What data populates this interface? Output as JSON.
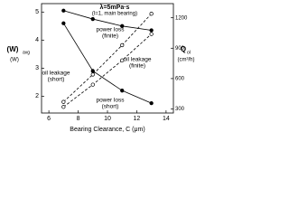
{
  "chart_data": {
    "type": "line",
    "title": "λ=5mPa·s",
    "subtitle": "(l=1, main bearing)",
    "x_label": "Bearing Clearance, C (μm)",
    "y_label": "(W)",
    "y_label_sub": "avg",
    "y_unit": "(W)",
    "y2_label": "Q",
    "y2_label_sub": "ol",
    "y2_unit": "(cm³/h)",
    "x": [
      7,
      9,
      11,
      13
    ],
    "xlim": [
      5.5,
      14.5
    ],
    "xticks": [
      6,
      8,
      10,
      12,
      14
    ],
    "ylim": [
      1.4,
      5.3
    ],
    "yticks": [
      2,
      3,
      4,
      5
    ],
    "y2lim": [
      260,
      1340
    ],
    "y2ticks": [
      300,
      600,
      900,
      1200
    ],
    "series": [
      {
        "label_lines": [
          "power loss",
          "(finite)"
        ],
        "color": "#000000",
        "dashed": false,
        "filled": true,
        "values": [
          5.05,
          4.75,
          4.5,
          4.35
        ]
      },
      {
        "label_lines": [
          "oil leakage",
          "(finite)"
        ],
        "color": "#000000",
        "dashed": true,
        "filled": false,
        "axis": "y2",
        "values": [
          370,
          640,
          930,
          1240
        ]
      },
      {
        "label_lines": [
          "oil leakage",
          "(short)"
        ],
        "color": "#000000",
        "dashed": true,
        "filled": false,
        "axis": "y2",
        "values": [
          320,
          540,
          780,
          1040
        ]
      },
      {
        "label_lines": [
          "power loss",
          "(short)"
        ],
        "color": "#000000",
        "dashed": false,
        "filled": true,
        "values": [
          4.6,
          2.9,
          2.2,
          1.75
        ]
      }
    ]
  }
}
